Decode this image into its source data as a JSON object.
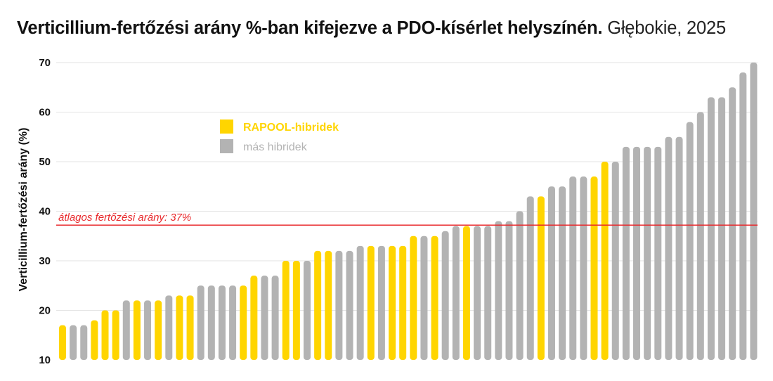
{
  "title_bold": "Verticillium-fertőzési arány %-ban kifejezve a PDO-kísérlet helyszínén.",
  "title_light": "Głębokie, 2025",
  "chart_data": {
    "type": "bar",
    "ylabel": "Verticillium-fertőzési arány (%)",
    "ylim": [
      10,
      70
    ],
    "yticks": [
      "10",
      "20",
      "30",
      "40",
      "50",
      "60",
      "70"
    ],
    "grid": true,
    "legend_placement": "upper-left inside plot",
    "colors": {
      "RAPOOL-hibridek": "#ffd500",
      "más hibridek": "#b3b3b3",
      "average": "#e8282b"
    },
    "series": [
      {
        "name": "RAPOOL-hibridek",
        "bars": [
          [
            0,
            17
          ],
          [
            3,
            18
          ],
          [
            4,
            20
          ],
          [
            5,
            20
          ],
          [
            7,
            22
          ],
          [
            9,
            22
          ],
          [
            11,
            23
          ],
          [
            12,
            23
          ],
          [
            17,
            25
          ],
          [
            18,
            27
          ],
          [
            21,
            30
          ],
          [
            22,
            30
          ],
          [
            24,
            32
          ],
          [
            25,
            32
          ],
          [
            29,
            33
          ],
          [
            31,
            33
          ],
          [
            32,
            33
          ],
          [
            33,
            35
          ],
          [
            35,
            35
          ],
          [
            38,
            37
          ],
          [
            45,
            43
          ],
          [
            50,
            47
          ],
          [
            51,
            50
          ]
        ]
      },
      {
        "name": "más hibridek",
        "bars": [
          [
            1,
            17
          ],
          [
            2,
            17
          ],
          [
            6,
            22
          ],
          [
            8,
            22
          ],
          [
            10,
            23
          ],
          [
            13,
            25
          ],
          [
            14,
            25
          ],
          [
            15,
            25
          ],
          [
            16,
            25
          ],
          [
            19,
            27
          ],
          [
            20,
            27
          ],
          [
            23,
            30
          ],
          [
            26,
            32
          ],
          [
            27,
            32
          ],
          [
            28,
            33
          ],
          [
            30,
            33
          ],
          [
            34,
            35
          ],
          [
            36,
            36
          ],
          [
            37,
            37
          ],
          [
            39,
            37
          ],
          [
            40,
            37
          ],
          [
            41,
            38
          ],
          [
            42,
            38
          ],
          [
            43,
            40
          ],
          [
            44,
            43
          ],
          [
            46,
            45
          ],
          [
            47,
            45
          ],
          [
            48,
            47
          ],
          [
            49,
            47
          ],
          [
            52,
            50
          ],
          [
            53,
            53
          ],
          [
            54,
            53
          ],
          [
            55,
            53
          ],
          [
            56,
            53
          ],
          [
            57,
            55
          ],
          [
            58,
            55
          ],
          [
            59,
            58
          ],
          [
            60,
            60
          ],
          [
            61,
            63
          ],
          [
            62,
            63
          ],
          [
            63,
            65
          ],
          [
            64,
            68
          ],
          [
            65,
            70
          ]
        ]
      }
    ],
    "average": {
      "label": "átlagos fertőzési arány: 37%",
      "value": 37.2
    }
  }
}
